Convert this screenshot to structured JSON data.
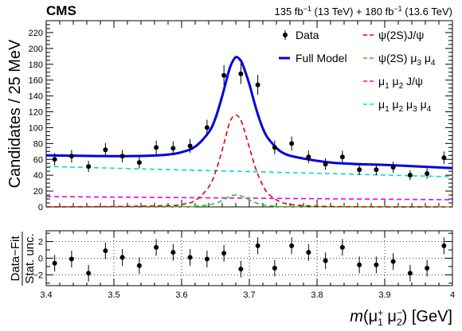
{
  "header": {
    "experiment": "CMS",
    "lumi_a": "135 fb",
    "lumi_a_exp": "−1",
    "lumi_a_energy": " (13 TeV) + 180 fb",
    "lumi_b_exp": "−1",
    "lumi_b_energy": " (13.6 TeV)"
  },
  "axes": {
    "ylabel_main": "Candidates / 25 MeV",
    "ylabel_sub_top": "Data−Fit",
    "ylabel_sub_bottom": "Stat. unc.",
    "xlabel_m": "m",
    "xlabel_rest": "(μ",
    "xlabel_sup1": "+",
    "xlabel_sub1": "1",
    "xlabel_mu2": " μ",
    "xlabel_sup2": "−",
    "xlabel_sub2": "2",
    "xlabel_unit": ") [GeV]"
  },
  "legend": {
    "data": "Data",
    "full": "Full Model",
    "psi_jpsi": "ψ(2S)J/ψ",
    "psi_mumu_a": "ψ(2S) μ",
    "psi_mumu_s1": "3",
    "psi_mumu_b": " μ",
    "psi_mumu_s2": "4",
    "mumu_jpsi_a": "μ",
    "mumu_jpsi_s1": "1",
    "mumu_jpsi_b": " μ",
    "mumu_jpsi_s2": "2",
    "mumu_jpsi_c": " J/ψ",
    "four_mu_a": "μ",
    "four_mu_s1": "1",
    "four_mu_b": " μ",
    "four_mu_s2": "2",
    "four_mu_c": " μ",
    "four_mu_s3": "3",
    "four_mu_d": " μ",
    "four_mu_s4": "4"
  },
  "chart_data": [
    {
      "type": "scatter",
      "panel": "main",
      "xlim": [
        3.4,
        4.0
      ],
      "ylim": [
        0,
        235
      ],
      "x_ticks": [
        "3.4",
        "3.5",
        "3.6",
        "3.7",
        "3.8",
        "3.9",
        "4"
      ],
      "y_ticks": [
        "0",
        "20",
        "40",
        "60",
        "80",
        "100",
        "120",
        "140",
        "160",
        "180",
        "200",
        "220"
      ],
      "legend_placement": "top-right",
      "series": [
        {
          "name": "Data",
          "color": "#000000",
          "x": [
            3.4125,
            3.4375,
            3.4625,
            3.4875,
            3.5125,
            3.5375,
            3.5625,
            3.5875,
            3.6125,
            3.6375,
            3.6625,
            3.6875,
            3.7125,
            3.7375,
            3.7625,
            3.7875,
            3.8125,
            3.8375,
            3.8625,
            3.8875,
            3.9125,
            3.9375,
            3.9625,
            3.9875
          ],
          "y": [
            60,
            64,
            51,
            72,
            64,
            56,
            75,
            74,
            77,
            100,
            166,
            168,
            154,
            75,
            80,
            63,
            54,
            63,
            47,
            47,
            50,
            40,
            42,
            62
          ],
          "yerr": [
            8,
            8,
            7,
            8.5,
            8,
            7.5,
            8.7,
            8.6,
            8.8,
            10,
            12.9,
            13,
            12.4,
            8.7,
            8.9,
            7.9,
            7.3,
            7.9,
            6.9,
            6.9,
            7.1,
            6.3,
            6.5,
            7.9
          ]
        },
        {
          "name": "Full Model",
          "color": "#0000dd",
          "x": [
            3.4,
            3.45,
            3.5,
            3.55,
            3.58,
            3.6,
            3.62,
            3.64,
            3.65,
            3.66,
            3.67,
            3.675,
            3.68,
            3.685,
            3.69,
            3.7,
            3.71,
            3.72,
            3.73,
            3.75,
            3.78,
            3.82,
            3.86,
            3.9,
            3.95,
            4.0
          ],
          "y": [
            65,
            64.5,
            64,
            64.5,
            66,
            69,
            76,
            94,
            112,
            140,
            172,
            183,
            189,
            187,
            180,
            155,
            124,
            99,
            84,
            68,
            61,
            56,
            54,
            53,
            51,
            49
          ]
        },
        {
          "name": "ψ(2S)J/ψ",
          "color": "#e00000",
          "x": [
            3.4,
            3.5,
            3.58,
            3.6,
            3.62,
            3.64,
            3.65,
            3.66,
            3.67,
            3.675,
            3.68,
            3.685,
            3.69,
            3.7,
            3.71,
            3.72,
            3.73,
            3.75,
            3.78,
            3.82,
            3.9,
            4.0
          ],
          "y": [
            0,
            0.5,
            1.5,
            3,
            8,
            25,
            44,
            72,
            104,
            113,
            116,
            113,
            104,
            75,
            47,
            27,
            15,
            5,
            1.5,
            0.5,
            0,
            0
          ]
        },
        {
          "name": "ψ(2S) μ3 μ4",
          "color": "#22cc22",
          "x": [
            3.4,
            3.6,
            3.62,
            3.64,
            3.65,
            3.66,
            3.67,
            3.675,
            3.68,
            3.685,
            3.69,
            3.7,
            3.71,
            3.72,
            3.74,
            3.76,
            4.0
          ],
          "y": [
            0,
            0.3,
            0.8,
            2.5,
            4.5,
            8,
            13,
            14.5,
            15,
            14.5,
            13,
            9,
            5,
            2.5,
            0.8,
            0.2,
            0
          ]
        },
        {
          "name": "μ1 μ2 J/ψ",
          "color": "#ee00ee",
          "x": [
            3.4,
            4.0
          ],
          "y": [
            13,
            9
          ]
        },
        {
          "name": "μ1 μ2 μ3 μ4",
          "color": "#00dddd",
          "x": [
            3.4,
            4.0
          ],
          "y": [
            51,
            38
          ]
        }
      ]
    },
    {
      "type": "scatter",
      "panel": "pull",
      "xlim": [
        3.4,
        4.0
      ],
      "ylim": [
        -3.3,
        3.3
      ],
      "y_ticks": [
        "−2",
        "0",
        "2"
      ],
      "series": [
        {
          "name": "Data−Fit",
          "x": [
            3.4125,
            3.4375,
            3.4625,
            3.4875,
            3.5125,
            3.5375,
            3.5625,
            3.5875,
            3.6125,
            3.6375,
            3.6625,
            3.6875,
            3.7125,
            3.7375,
            3.7625,
            3.7875,
            3.8125,
            3.8375,
            3.8625,
            3.8875,
            3.9125,
            3.9375,
            3.9625,
            3.9875
          ],
          "y": [
            -0.6,
            -0.1,
            -1.8,
            0.9,
            0.1,
            -0.9,
            1.3,
            0.7,
            0.1,
            -0.1,
            0.6,
            -1.3,
            1.5,
            -1.2,
            1.5,
            0.7,
            -0.3,
            1.3,
            -0.8,
            -0.8,
            -0.4,
            -1.8,
            -1.2,
            1.5
          ],
          "yerr": [
            1,
            1,
            1,
            1,
            1,
            1,
            1,
            1,
            1,
            1,
            1,
            1,
            1,
            1,
            1,
            1,
            1,
            1,
            1,
            1,
            1,
            1,
            1,
            1
          ]
        }
      ]
    }
  ]
}
